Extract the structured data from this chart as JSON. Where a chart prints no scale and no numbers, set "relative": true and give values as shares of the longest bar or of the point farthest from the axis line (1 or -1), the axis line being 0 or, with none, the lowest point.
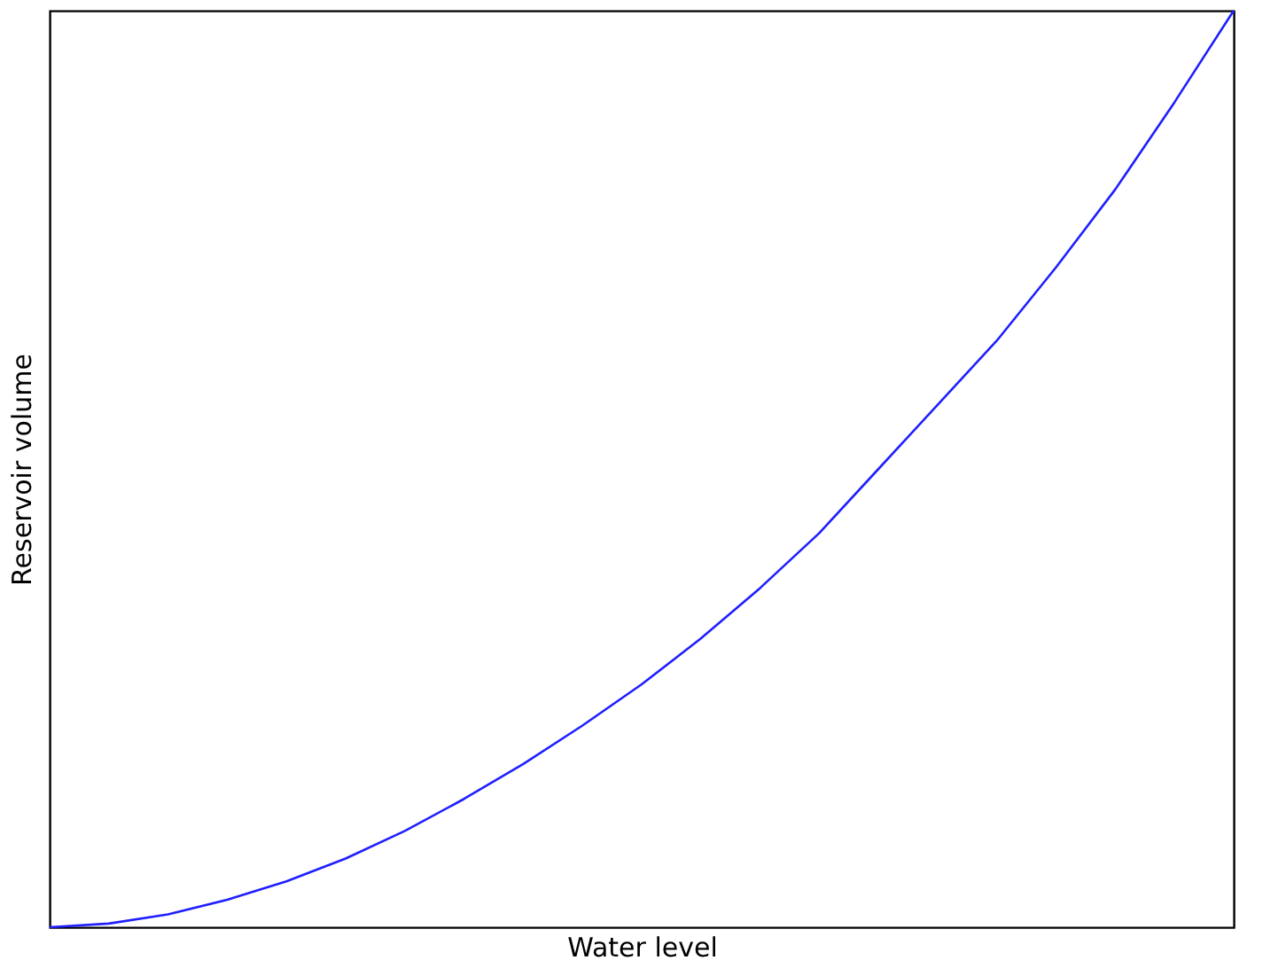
{
  "chart_data": {
    "type": "line",
    "xlabel": "Water level",
    "ylabel": "Reservoir volume",
    "relative": true,
    "tick_labels": false,
    "grid": false,
    "marker": "none",
    "line_style": "solid",
    "categories": [
      null,
      null,
      null,
      null,
      null,
      null,
      null,
      null,
      null,
      null,
      null,
      null,
      null,
      null,
      null,
      null,
      null,
      null,
      null,
      null,
      null
    ],
    "series": [
      {
        "color": "#1f1fff",
        "values": [
          0,
          0.004,
          0.014,
          0.03,
          0.05,
          0.075,
          0.105,
          0.14,
          0.178,
          0.22,
          0.265,
          0.315,
          0.37,
          0.43,
          0.5,
          0.57,
          0.64,
          0.72,
          0.805,
          0.9,
          1
        ]
      }
    ]
  }
}
